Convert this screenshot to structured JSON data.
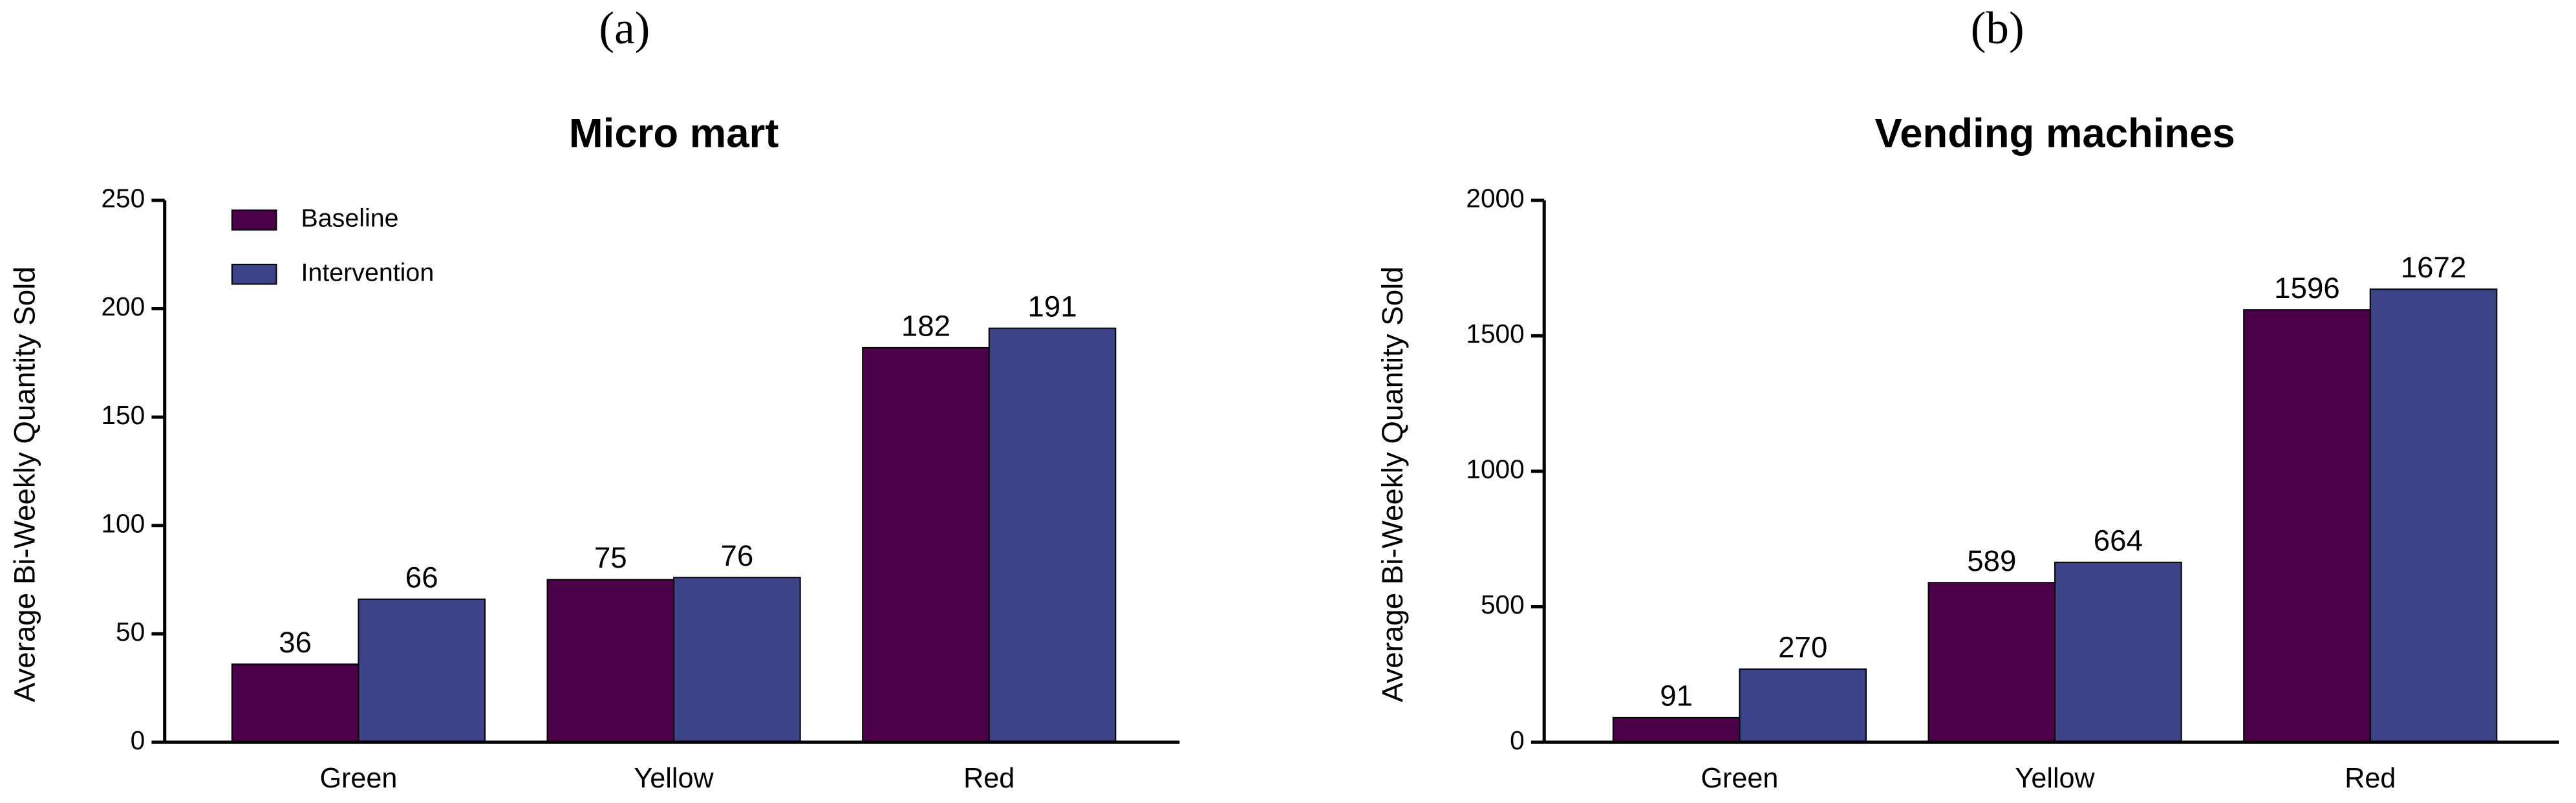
{
  "chart_data": [
    {
      "type": "bar",
      "panel_label": "(a)",
      "title": "Micro mart",
      "y_label": "Average Bi-Weekly Quantity Sold",
      "categories": [
        "Green",
        "Yellow",
        "Red"
      ],
      "series": [
        {
          "name": "Baseline",
          "color": "#4b0049",
          "values": [
            36,
            75,
            182
          ]
        },
        {
          "name": "Intervention",
          "color": "#3d4388",
          "values": [
            66,
            76,
            191
          ]
        }
      ],
      "ylim": [
        0,
        250
      ],
      "yticks": [
        0,
        50,
        100,
        150,
        200,
        250
      ],
      "legend": "upper left"
    },
    {
      "type": "bar",
      "panel_label": "(b)",
      "title": "Vending machines",
      "y_label": "Average Bi-Weekly Quantity Sold",
      "categories": [
        "Green",
        "Yellow",
        "Red"
      ],
      "series": [
        {
          "color": "#4b0049",
          "values": [
            91,
            589,
            1596
          ]
        },
        {
          "color": "#3d4388",
          "values": [
            270,
            664,
            1672
          ]
        }
      ],
      "ylim": [
        0,
        2000
      ],
      "yticks": [
        0,
        500,
        1000,
        1500,
        2000
      ]
    }
  ]
}
